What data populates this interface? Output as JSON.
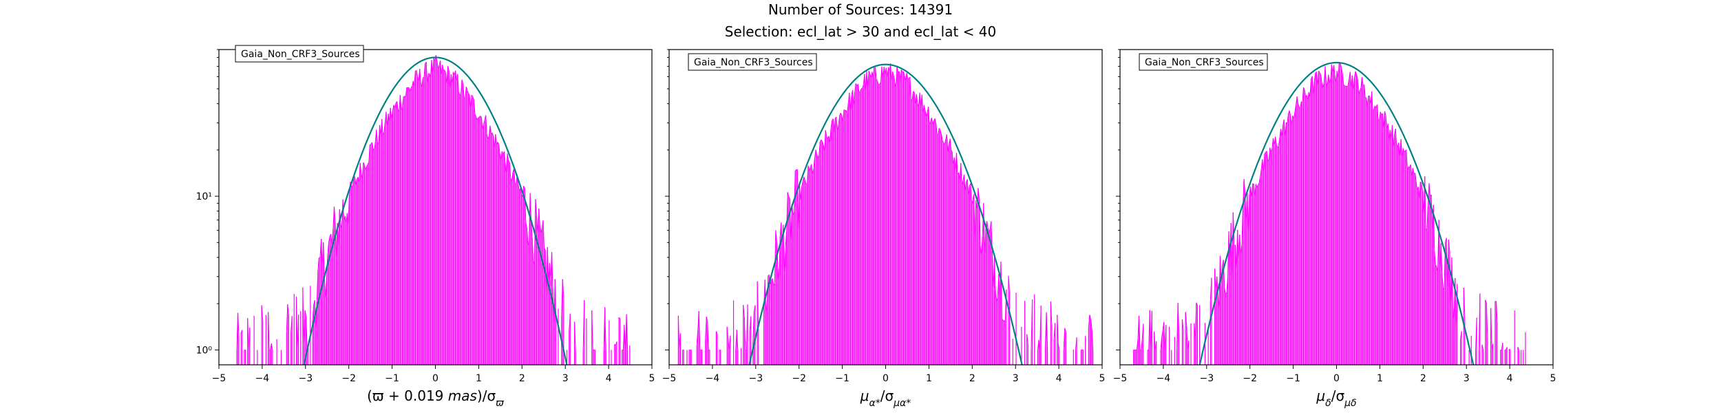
{
  "figure": {
    "title_line_1": "Number of Sources: 14391",
    "title_line_2": "Selection: ecl_lat > 30 and ecl_lat < 40"
  },
  "colors": {
    "histogram": "#ff00ff",
    "fit_curve": "#008080"
  },
  "chart_data": [
    {
      "type": "line",
      "subtype": "histogram with gaussian fit",
      "legend": "Gaia_Non_CRF3_Sources",
      "legend_position": "upper-left",
      "xlabel": "(ϖ + 0.019 mas)/σ_ϖ",
      "ylabel": "",
      "xlim": [
        -5,
        5
      ],
      "ylim": [
        0.8,
        90
      ],
      "yscale": "log",
      "x_ticks": [
        -5,
        -4,
        -3,
        -2,
        -1,
        0,
        1,
        2,
        3,
        4,
        5
      ],
      "x_tick_labels": [
        "−5",
        "−4",
        "−3",
        "−2",
        "−1",
        "0",
        "1",
        "2",
        "3",
        "4",
        "5"
      ],
      "y_ticks": [
        1,
        10
      ],
      "y_tick_labels": [
        "10⁰",
        "10¹"
      ],
      "histogram_envelope": {
        "x": [
          -4.6,
          -3.0,
          -2.5,
          -2.0,
          -1.5,
          -1.0,
          -0.5,
          0.0,
          0.5,
          1.0,
          1.5,
          2.0,
          2.5,
          3.0,
          4.5
        ],
        "y": [
          1,
          1.5,
          4,
          10,
          20,
          35,
          55,
          70,
          55,
          35,
          20,
          10,
          4,
          1.5,
          1
        ]
      },
      "fit": {
        "peak": 80,
        "mean": 0.0,
        "sigma": 1.0
      }
    },
    {
      "type": "line",
      "subtype": "histogram with gaussian fit",
      "legend": "Gaia_Non_CRF3_Sources",
      "legend_position": "upper-left",
      "xlabel": "μ_α*/σ_μα*",
      "ylabel": "",
      "xlim": [
        -5,
        5
      ],
      "ylim": [
        0.8,
        90
      ],
      "yscale": "log",
      "x_ticks": [
        -5,
        -4,
        -3,
        -2,
        -1,
        0,
        1,
        2,
        3,
        4,
        5
      ],
      "x_tick_labels": [
        "−5",
        "−4",
        "−3",
        "−2",
        "−1",
        "0",
        "1",
        "2",
        "3",
        "4",
        "5"
      ],
      "y_ticks": [
        1,
        10
      ],
      "y_tick_labels": [
        "",
        ""
      ],
      "histogram_envelope": {
        "x": [
          -4.8,
          -3.0,
          -2.5,
          -2.0,
          -1.5,
          -1.0,
          -0.5,
          0.0,
          0.5,
          1.0,
          1.5,
          2.0,
          2.5,
          3.0,
          4.8
        ],
        "y": [
          1,
          1.5,
          4,
          10,
          20,
          35,
          55,
          65,
          55,
          35,
          20,
          10,
          4,
          1.5,
          1
        ]
      },
      "fit": {
        "peak": 72,
        "mean": 0.0,
        "sigma": 1.05
      }
    },
    {
      "type": "line",
      "subtype": "histogram with gaussian fit",
      "legend": "Gaia_Non_CRF3_Sources",
      "legend_position": "upper-left",
      "xlabel": "μ_δ/σ_μδ",
      "ylabel": "",
      "xlim": [
        -5,
        5
      ],
      "ylim": [
        0.8,
        90
      ],
      "yscale": "log",
      "x_ticks": [
        -5,
        -4,
        -3,
        -2,
        -1,
        0,
        1,
        2,
        3,
        4,
        5
      ],
      "x_tick_labels": [
        "−5",
        "−4",
        "−3",
        "−2",
        "−1",
        "0",
        "1",
        "2",
        "3",
        "4",
        "5"
      ],
      "y_ticks": [
        1,
        10
      ],
      "y_tick_labels": [
        "",
        ""
      ],
      "histogram_envelope": {
        "x": [
          -4.7,
          -3.0,
          -2.5,
          -2.0,
          -1.5,
          -1.0,
          -0.5,
          0.0,
          0.5,
          1.0,
          1.5,
          2.0,
          2.5,
          3.0,
          4.4
        ],
        "y": [
          1,
          1.5,
          4,
          10,
          20,
          35,
          55,
          65,
          55,
          35,
          20,
          10,
          4,
          1.5,
          1
        ]
      },
      "fit": {
        "peak": 74,
        "mean": 0.0,
        "sigma": 1.05
      }
    }
  ]
}
